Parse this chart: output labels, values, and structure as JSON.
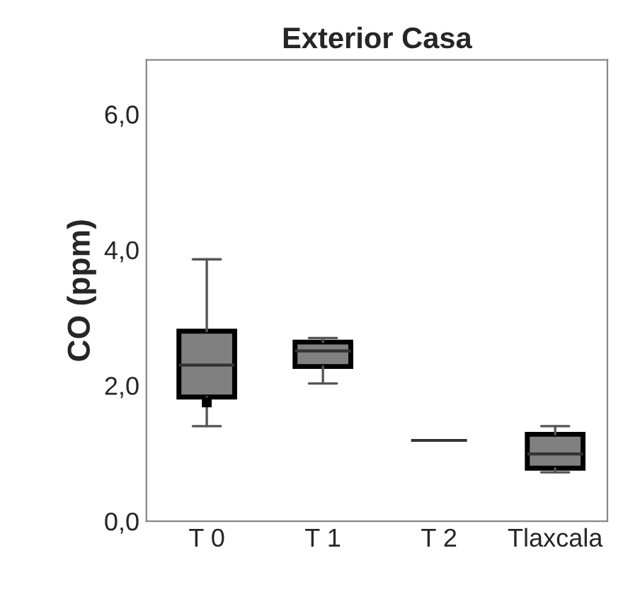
{
  "chart_data": {
    "type": "box",
    "title": "Exterior Casa",
    "ylabel": "CO (ppm)",
    "categories": [
      "T 0",
      "T 1",
      "T 2",
      "Tlaxcala"
    ],
    "color": "#808080",
    "boxes": [
      {
        "low": 1.4,
        "q1": 1.83,
        "median": 2.3,
        "q3": 2.8,
        "high": 3.86,
        "outliers": [
          1.75
        ]
      },
      {
        "low": 2.03,
        "q1": 2.28,
        "median": 2.51,
        "q3": 2.64,
        "high": 2.7
      },
      {
        "low": 1.19,
        "q1": 1.19,
        "median": 1.19,
        "q3": 1.19,
        "high": 1.19
      },
      {
        "low": 0.72,
        "q1": 0.78,
        "median": 0.99,
        "q3": 1.28,
        "high": 1.4
      }
    ],
    "ylim": [
      0,
      6.8
    ],
    "yticks": [
      {
        "value": 0,
        "label": "0,0"
      },
      {
        "value": 2,
        "label": "2,0"
      },
      {
        "value": 4,
        "label": "4,0"
      },
      {
        "value": 6,
        "label": "6,0"
      }
    ],
    "grid": false
  }
}
